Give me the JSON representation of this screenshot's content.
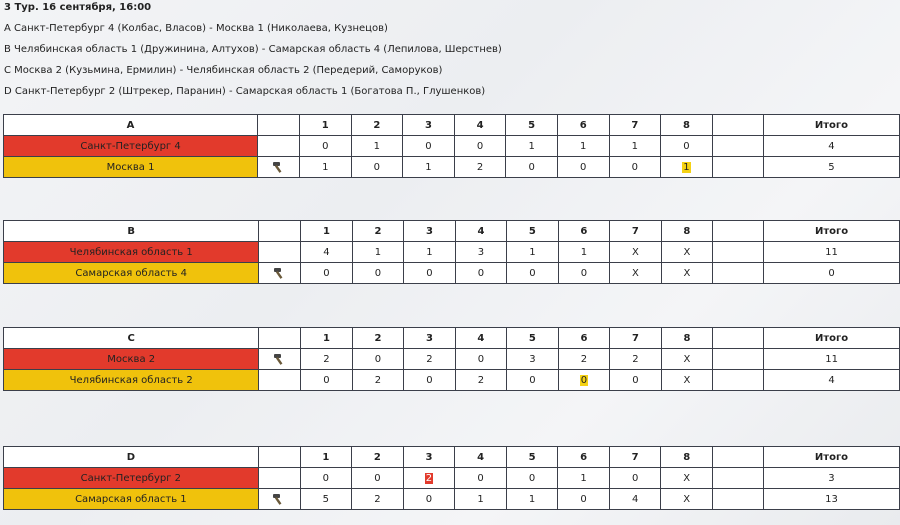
{
  "round_title": "3 Тур. 16 сентября, 16:00",
  "matchups": [
    "A Санкт-Петербург 4 (Колбас, Власов) - Москва 1 (Николаева, Кузнецов)",
    "B Челябинская область 1 (Дружинина, Алтухов) - Самарская область 4 (Лепилова, Шерстнев)",
    "C Москва 2 (Кузьмина, Ермилин) - Челябинская область 2 (Передерий, Саморуков)",
    "D Санкт-Петербург 2 (Штрекер, Паранин) - Самарская область 1 (Богатова П., Глушенков)"
  ],
  "columns": [
    "1",
    "2",
    "3",
    "4",
    "5",
    "6",
    "7",
    "8"
  ],
  "total_label": "Итого",
  "sheets": [
    {
      "label": "A",
      "rows": [
        {
          "team": "Санкт-Петербург 4",
          "color": "red",
          "hammer": false,
          "ends": [
            "0",
            "1",
            "0",
            "0",
            "1",
            "1",
            "1",
            "0"
          ],
          "highlight": {},
          "total": "4"
        },
        {
          "team": "Москва 1",
          "color": "yellow",
          "hammer": true,
          "ends": [
            "1",
            "0",
            "1",
            "2",
            "0",
            "0",
            "0",
            "1"
          ],
          "highlight": {
            "7": "yellow"
          },
          "total": "5"
        }
      ]
    },
    {
      "label": "B",
      "rows": [
        {
          "team": "Челябинская область 1",
          "color": "red",
          "hammer": false,
          "ends": [
            "4",
            "1",
            "1",
            "3",
            "1",
            "1",
            "X",
            "X"
          ],
          "highlight": {},
          "total": "11"
        },
        {
          "team": "Самарская область 4",
          "color": "yellow",
          "hammer": true,
          "ends": [
            "0",
            "0",
            "0",
            "0",
            "0",
            "0",
            "X",
            "X"
          ],
          "highlight": {},
          "total": "0"
        }
      ]
    },
    {
      "label": "C",
      "rows": [
        {
          "team": "Москва 2",
          "color": "red",
          "hammer": true,
          "ends": [
            "2",
            "0",
            "2",
            "0",
            "3",
            "2",
            "2",
            "X"
          ],
          "highlight": {},
          "total": "11"
        },
        {
          "team": "Челябинская область 2",
          "color": "yellow",
          "hammer": false,
          "ends": [
            "0",
            "2",
            "0",
            "2",
            "0",
            "0",
            "0",
            "X"
          ],
          "highlight": {
            "5": "yellow"
          },
          "total": "4"
        }
      ]
    },
    {
      "label": "D",
      "rows": [
        {
          "team": "Санкт-Петербург 2",
          "color": "red",
          "hammer": false,
          "ends": [
            "0",
            "0",
            "2",
            "0",
            "0",
            "1",
            "0",
            "X"
          ],
          "highlight": {
            "2": "red"
          },
          "total": "3"
        },
        {
          "team": "Самарская область 1",
          "color": "yellow",
          "hammer": true,
          "ends": [
            "5",
            "2",
            "0",
            "1",
            "1",
            "0",
            "4",
            "X"
          ],
          "highlight": {},
          "total": "13"
        }
      ]
    }
  ]
}
